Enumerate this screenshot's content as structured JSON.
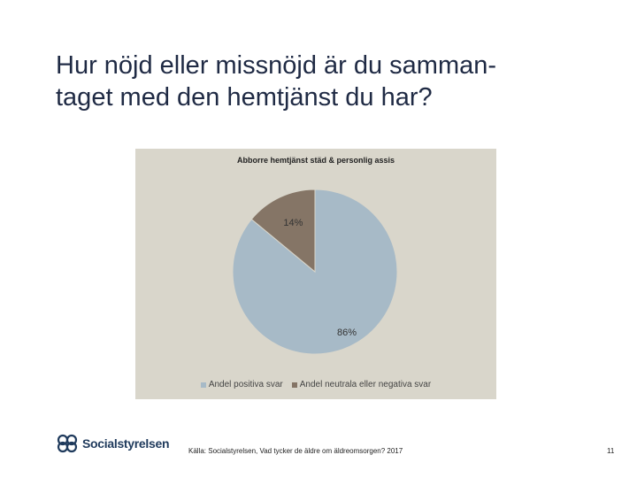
{
  "slide": {
    "title": "Hur nöjd eller missnöjd är du samman-\ntaget med den hemtjänst du har?",
    "source": "Källa: Socialstyrelsen, Vad tycker de äldre om äldreomsorgen? 2017",
    "page_number": "11"
  },
  "logo": {
    "icon": "socialstyrelsen-logo-icon",
    "text": "Socialstyrelsen"
  },
  "chart_data": {
    "type": "pie",
    "title": "Abborre hemtjänst städ & personlig assis",
    "legend_position": "bottom",
    "slices": [
      {
        "name": "Andel positiva svar",
        "value": 86,
        "label": "86%",
        "color": "#a7bac7"
      },
      {
        "name": "Andel neutrala eller negativa svar",
        "value": 14,
        "label": "14%",
        "color": "#857566"
      }
    ]
  }
}
